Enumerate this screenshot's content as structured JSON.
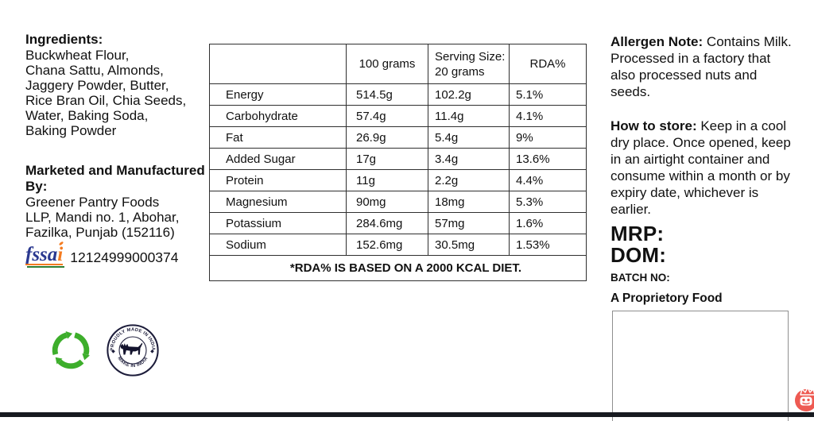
{
  "left": {
    "ingredients_title": "Ingredients:",
    "ingredients_lines": [
      "Buckwheat Flour,",
      "Chana Sattu, Almonds,",
      "Jaggery Powder, Butter,",
      "Rice Bran Oil, Chia Seeds,",
      "Water, Baking Soda,",
      "Baking Powder"
    ],
    "manufacturer_title": "Marketed and Manufactured By:",
    "manufacturer_lines": [
      "Greener Pantry Foods",
      "LLP, Mandi no. 1, Abohar,",
      "Fazilka, Punjab (152116)"
    ],
    "fssai_word_blue": "fssa",
    "fssai_word_orange": "i",
    "fssai_license": "12124999000374",
    "stamp_top_text": "PROUDLY MADE IN INDIA",
    "stamp_bottom_text": "MAKE IN INDIA"
  },
  "table": {
    "headers": [
      "",
      "100 grams",
      "Serving Size:\n20 grams",
      "RDA%"
    ],
    "rows": [
      [
        "Energy",
        "514.5g",
        "102.2g",
        "5.1%"
      ],
      [
        "Carbohydrate",
        "57.4g",
        "11.4g",
        "4.1%"
      ],
      [
        "Fat",
        "26.9g",
        "5.4g",
        "9%"
      ],
      [
        "Added Sugar",
        "17g",
        "3.4g",
        "13.6%"
      ],
      [
        "Protein",
        "11g",
        "2.2g",
        "4.4%"
      ],
      [
        "Magnesium",
        "90mg",
        "18mg",
        "5.3%"
      ],
      [
        "Potassium",
        "284.6mg",
        "57mg",
        "1.6%"
      ],
      [
        "Sodium",
        "152.6mg",
        "30.5mg",
        "1.53%"
      ]
    ],
    "footnote": "*RDA% IS BASED ON A 2000 KCAL DIET."
  },
  "right": {
    "allergen_title": "Allergen Note:",
    "allergen_text": "Contains Milk. Processed in a factory that also processed nuts and seeds.",
    "storage_title": "How to store:",
    "storage_text": "Keep in a cool dry place. Once opened, keep in an airtight container and consume within a month or by expiry date, whichever is earlier.",
    "mrp_label": "MRP:",
    "dom_label": "DOM:",
    "batch_label": "BATCH NO:",
    "proprietary_label": "A Proprietory Food"
  },
  "colors": {
    "recycle_green": "#3DAE2B",
    "fssai_blue": "#2B3990",
    "fssai_orange": "#F47B20",
    "stamp_navy": "#1C1C3A",
    "watermark_red": "#EE5A52",
    "table_border": "#2F2F2F",
    "bottom_bar": "#171A20"
  }
}
